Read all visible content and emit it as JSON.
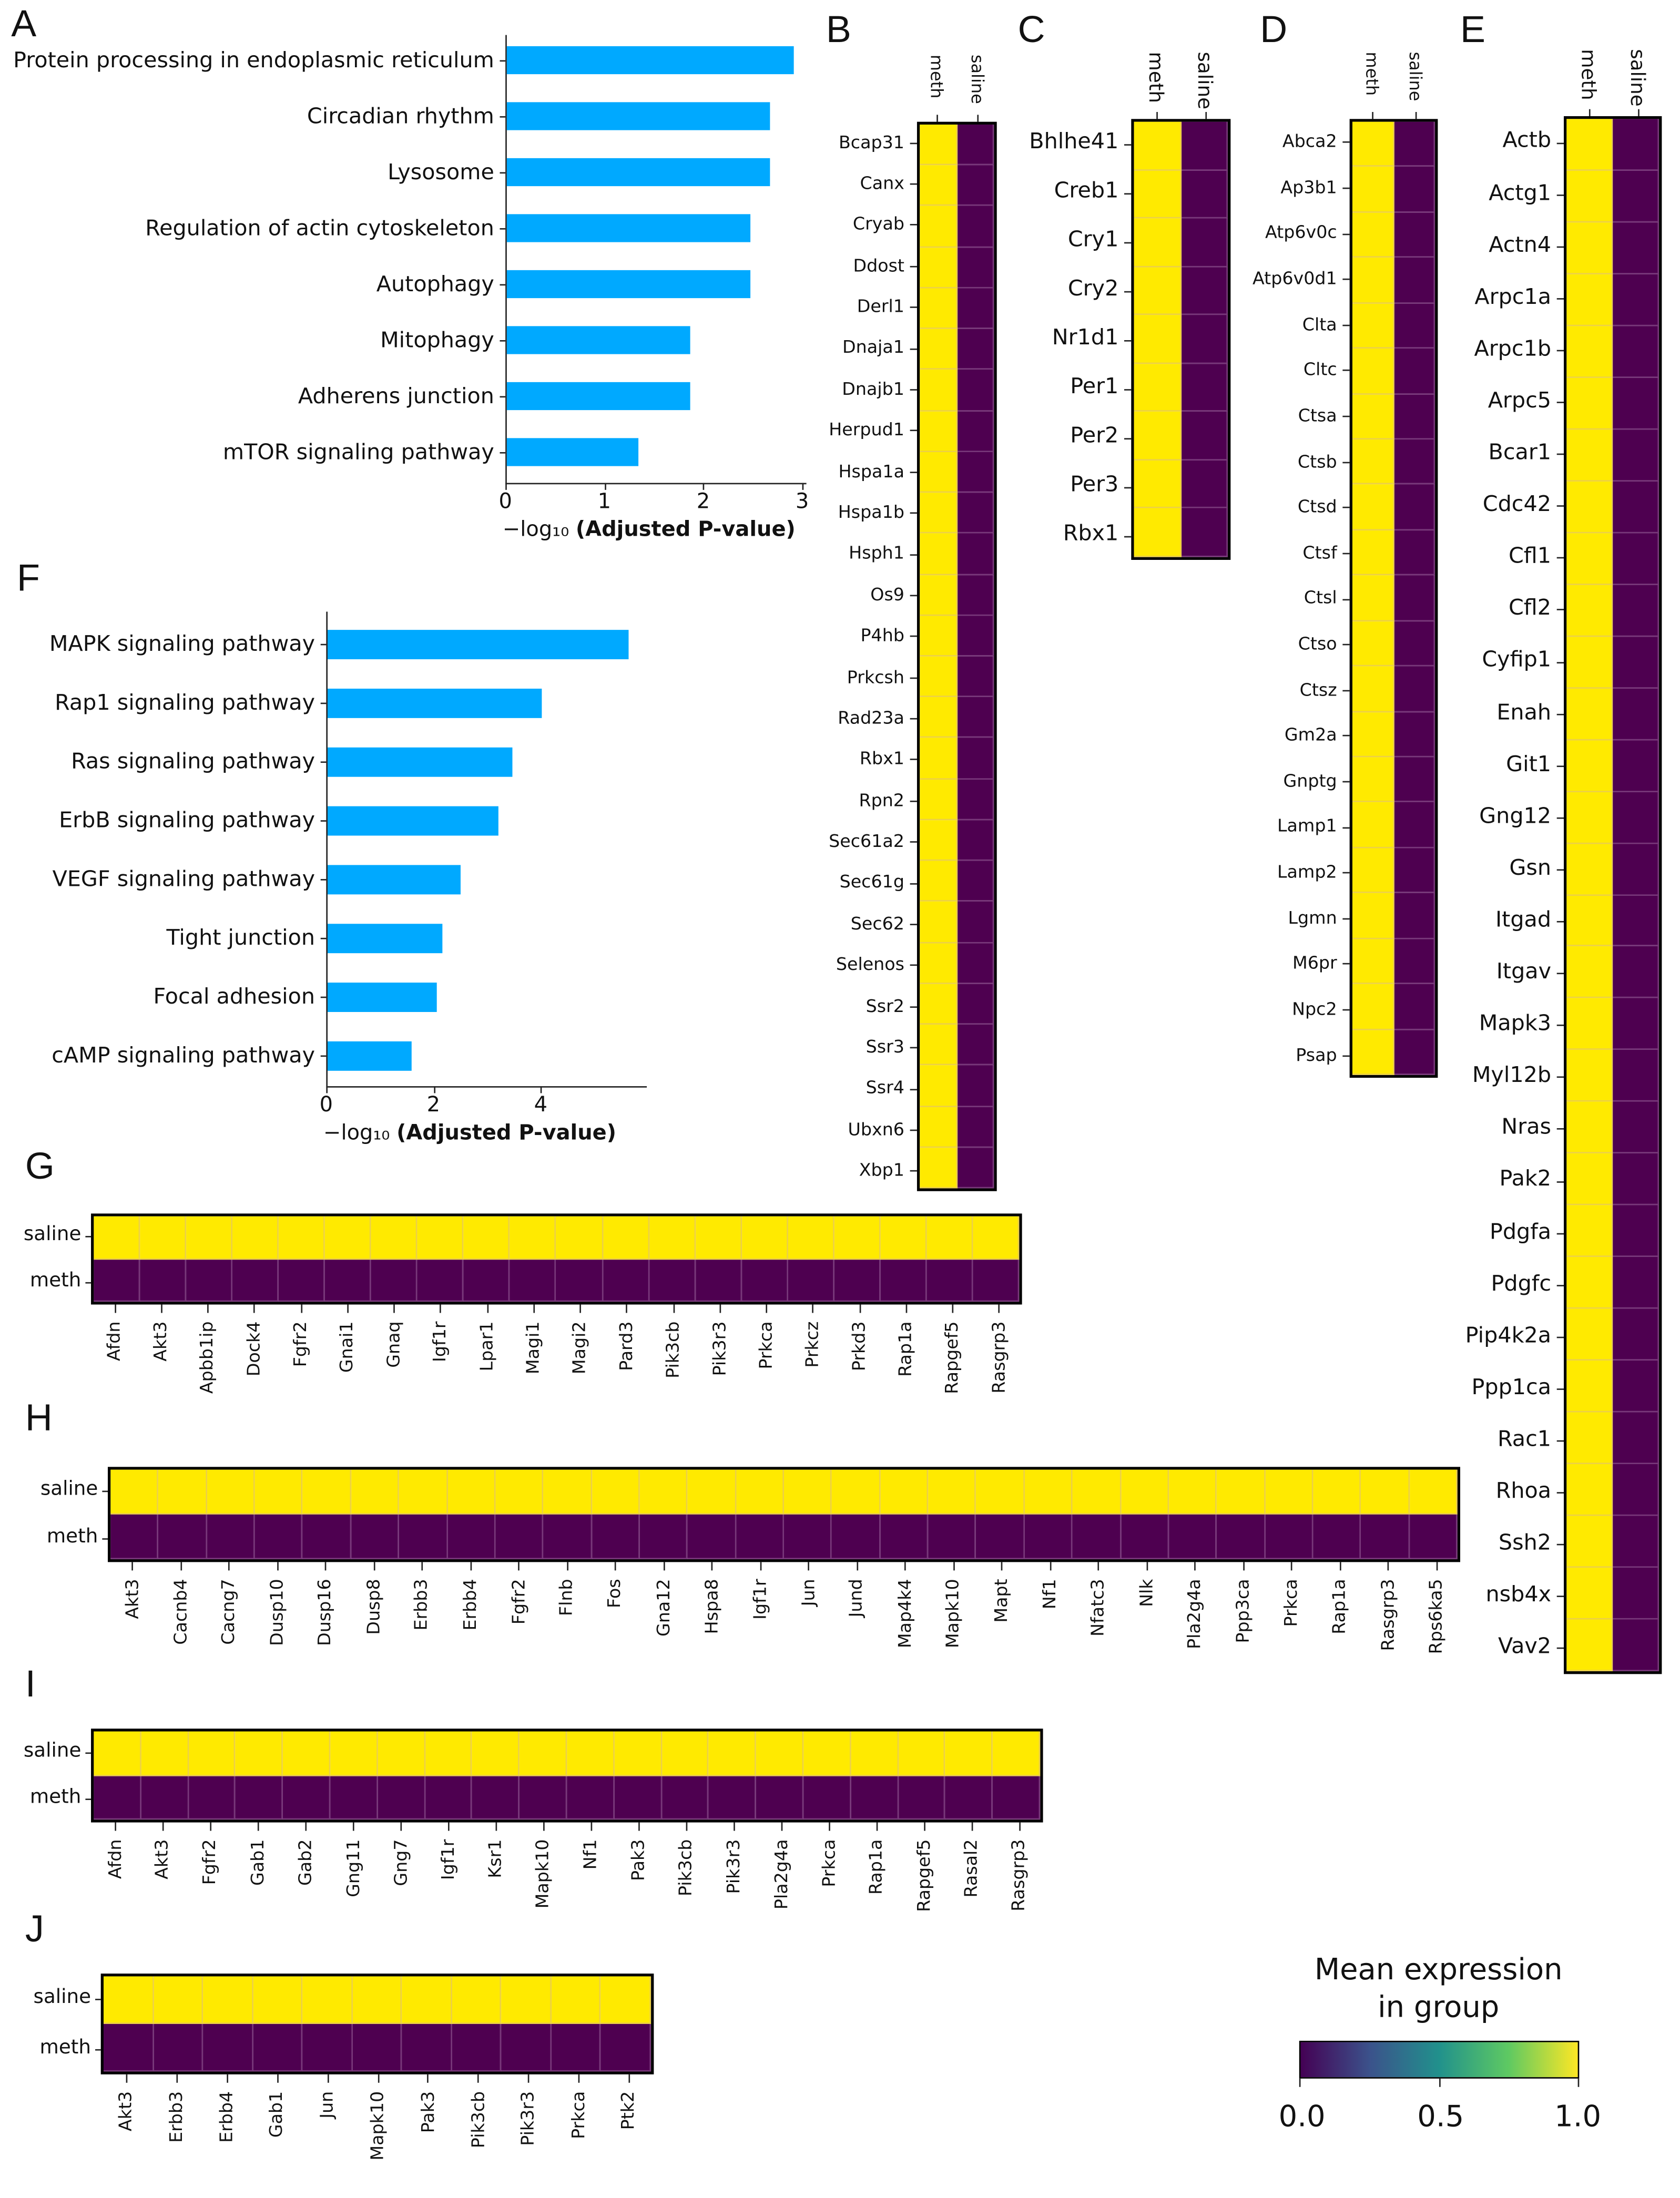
{
  "colors": {
    "bar": "#00a9ff",
    "high": "#ffea00",
    "low": "#4e0050"
  },
  "chart_data": [
    {
      "id": "A",
      "type": "bar",
      "orientation": "horizontal",
      "categories": [
        "Protein processing in endoplasmic reticulum",
        "Circadian rhythm",
        "Lysosome",
        "Regulation of actin cytoskeleton",
        "Autophagy",
        "Mitophagy",
        "Adherens junction",
        "mTOR signaling pathway"
      ],
      "values": [
        2.9,
        2.66,
        2.66,
        2.46,
        2.46,
        1.86,
        1.85,
        1.33
      ],
      "xticks": [
        "0",
        "1",
        "2",
        "3"
      ],
      "xlim": [
        0,
        3.05
      ],
      "xlabel_prefix": "−log₁₀",
      "xlabel_main": "(Adjusted P-value)"
    },
    {
      "id": "F",
      "type": "bar",
      "orientation": "horizontal",
      "categories": [
        "MAPK signaling pathway",
        "Rap1 signaling pathway",
        "Ras signaling pathway",
        "ErbB signaling pathway",
        "VEGF signaling pathway",
        "Tight junction",
        "Focal adhesion",
        "cAMP signaling pathway"
      ],
      "values": [
        5.6,
        4.0,
        3.44,
        3.18,
        2.48,
        2.14,
        2.04,
        1.57
      ],
      "xticks": [
        "0",
        "2",
        "4"
      ],
      "xlim": [
        0,
        5.9
      ],
      "xlabel_prefix": "−log₁₀",
      "xlabel_main": "(Adjusted P-value)"
    },
    {
      "id": "B",
      "type": "heatmap",
      "orientation": "vertical",
      "groups": [
        "meth",
        "saline"
      ],
      "group_values": [
        1,
        0
      ],
      "genes": [
        "Bcap31",
        "Canx",
        "Cryab",
        "Ddost",
        "Derl1",
        "Dnaja1",
        "Dnajb1",
        "Herpud1",
        "Hspa1a",
        "Hspa1b",
        "Hsph1",
        "Os9",
        "P4hb",
        "Prkcsh",
        "Rad23a",
        "Rbx1",
        "Rpn2",
        "Sec61a2",
        "Sec61g",
        "Sec62",
        "Selenos",
        "Ssr2",
        "Ssr3",
        "Ssr4",
        "Ubxn6",
        "Xbp1"
      ]
    },
    {
      "id": "C",
      "type": "heatmap",
      "orientation": "vertical",
      "groups": [
        "meth",
        "saline"
      ],
      "group_values": [
        1,
        0
      ],
      "genes": [
        "Bhlhe41",
        "Creb1",
        "Cry1",
        "Cry2",
        "Nr1d1",
        "Per1",
        "Per2",
        "Per3",
        "Rbx1"
      ]
    },
    {
      "id": "D",
      "type": "heatmap",
      "orientation": "vertical",
      "groups": [
        "meth",
        "saline"
      ],
      "group_values": [
        1,
        0
      ],
      "genes": [
        "Abca2",
        "Ap3b1",
        "Atp6v0c",
        "Atp6v0d1",
        "Clta",
        "Cltc",
        "Ctsa",
        "Ctsb",
        "Ctsd",
        "Ctsf",
        "Ctsl",
        "Ctso",
        "Ctsz",
        "Gm2a",
        "Gnptg",
        "Lamp1",
        "Lamp2",
        "Lgmn",
        "M6pr",
        "Npc2",
        "Psap"
      ]
    },
    {
      "id": "E",
      "type": "heatmap",
      "orientation": "vertical",
      "groups": [
        "meth",
        "saline"
      ],
      "group_values": [
        1,
        0
      ],
      "genes": [
        "Actb",
        "Actg1",
        "Actn4",
        "Arpc1a",
        "Arpc1b",
        "Arpc5",
        "Bcar1",
        "Cdc42",
        "Cfl1",
        "Cfl2",
        "Cyfip1",
        "Enah",
        "Git1",
        "Gng12",
        "Gsn",
        "Itgad",
        "Itgav",
        "Mapk3",
        "Myl12b",
        "Nras",
        "Pak2",
        "Pdgfa",
        "Pdgfc",
        "Pip4k2a",
        "Ppp1ca",
        "Rac1",
        "Rhoa",
        "Ssh2",
        "nsb4x",
        "Vav2"
      ]
    },
    {
      "id": "G",
      "type": "heatmap",
      "orientation": "horizontal",
      "groups": [
        "saline",
        "meth"
      ],
      "group_values": [
        1,
        0
      ],
      "genes": [
        "Afdn",
        "Akt3",
        "Apbb1ip",
        "Dock4",
        "Fgfr2",
        "Gnai1",
        "Gnaq",
        "Igf1r",
        "Lpar1",
        "Magi1",
        "Magi2",
        "Pard3",
        "Pik3cb",
        "Pik3r3",
        "Prkca",
        "Prkcz",
        "Prkd3",
        "Rap1a",
        "Rapgef5",
        "Rasgrp3"
      ]
    },
    {
      "id": "H",
      "type": "heatmap",
      "orientation": "horizontal",
      "groups": [
        "saline",
        "meth"
      ],
      "group_values": [
        1,
        0
      ],
      "genes": [
        "Akt3",
        "Cacnb4",
        "Cacng7",
        "Dusp10",
        "Dusp16",
        "Dusp8",
        "Erbb3",
        "Erbb4",
        "Fgfr2",
        "Flnb",
        "Fos",
        "Gna12",
        "Hspa8",
        "Igf1r",
        "Jun",
        "Jund",
        "Map4k4",
        "Mapk10",
        "Mapt",
        "Nf1",
        "Nfatc3",
        "Nlk",
        "Pla2g4a",
        "Ppp3ca",
        "Prkca",
        "Rap1a",
        "Rasgrp3",
        "Rps6ka5"
      ]
    },
    {
      "id": "I",
      "type": "heatmap",
      "orientation": "horizontal",
      "groups": [
        "saline",
        "meth"
      ],
      "group_values": [
        1,
        0
      ],
      "genes": [
        "Afdn",
        "Akt3",
        "Fgfr2",
        "Gab1",
        "Gab2",
        "Gng11",
        "Gng7",
        "Igf1r",
        "Ksr1",
        "Mapk10",
        "Nf1",
        "Pak3",
        "Pik3cb",
        "Pik3r3",
        "Pla2g4a",
        "Prkca",
        "Rap1a",
        "Rapgef5",
        "Rasal2",
        "Rasgrp3"
      ]
    },
    {
      "id": "J",
      "type": "heatmap",
      "orientation": "horizontal",
      "groups": [
        "saline",
        "meth"
      ],
      "group_values": [
        1,
        0
      ],
      "genes": [
        "Akt3",
        "Erbb3",
        "Erbb4",
        "Gab1",
        "Jun",
        "Mapk10",
        "Pak3",
        "Pik3cb",
        "Pik3r3",
        "Prkca",
        "Ptk2"
      ]
    }
  ],
  "colorbar": {
    "title_line1": "Mean expression",
    "title_line2": "in group",
    "ticks": [
      "0.0",
      "0.5",
      "1.0"
    ],
    "range": [
      0,
      1
    ]
  }
}
